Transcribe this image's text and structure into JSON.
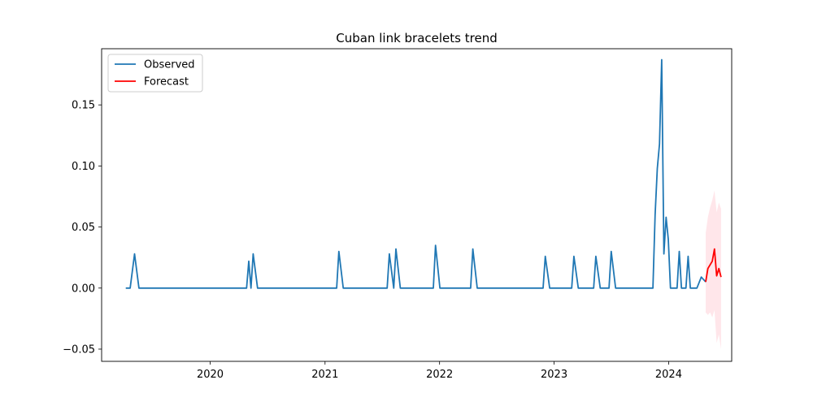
{
  "chart_data": {
    "type": "line",
    "title": "Cuban link bracelets trend",
    "xlabel": "",
    "ylabel": "",
    "x_axis": "date",
    "xlim": [
      "2019-01-20",
      "2024-07-20"
    ],
    "ylim": [
      -0.06,
      0.196
    ],
    "x_ticks": [
      {
        "date": "2020-01-01",
        "label": "2020"
      },
      {
        "date": "2021-01-01",
        "label": "2021"
      },
      {
        "date": "2022-01-01",
        "label": "2022"
      },
      {
        "date": "2023-01-01",
        "label": "2023"
      },
      {
        "date": "2024-01-01",
        "label": "2024"
      }
    ],
    "y_ticks": [
      {
        "value": -0.05,
        "label": "−0.05"
      },
      {
        "value": 0.0,
        "label": "0.00"
      },
      {
        "value": 0.05,
        "label": "0.05"
      },
      {
        "value": 0.1,
        "label": "0.10"
      },
      {
        "value": 0.15,
        "label": "0.15"
      }
    ],
    "grid": false,
    "legend": {
      "position": "top-left"
    },
    "colors": {
      "observed": "#1f77b4",
      "forecast": "#ff0000",
      "band": "#ffc0cb"
    },
    "series": [
      {
        "name": "Observed",
        "color": "#1f77b4",
        "points": [
          [
            "2019-04-07",
            0.0
          ],
          [
            "2019-04-21",
            0.0
          ],
          [
            "2019-05-05",
            0.028
          ],
          [
            "2019-05-19",
            0.0
          ],
          [
            "2020-04-26",
            0.0
          ],
          [
            "2020-05-03",
            0.022
          ],
          [
            "2020-05-10",
            0.0
          ],
          [
            "2020-05-17",
            0.028
          ],
          [
            "2020-05-31",
            0.0
          ],
          [
            "2021-02-07",
            0.0
          ],
          [
            "2021-02-14",
            0.03
          ],
          [
            "2021-02-28",
            0.0
          ],
          [
            "2021-07-18",
            0.0
          ],
          [
            "2021-07-25",
            0.028
          ],
          [
            "2021-08-08",
            0.0
          ],
          [
            "2021-08-15",
            0.032
          ],
          [
            "2021-08-29",
            0.0
          ],
          [
            "2021-12-12",
            0.0
          ],
          [
            "2021-12-19",
            0.035
          ],
          [
            "2022-01-02",
            0.0
          ],
          [
            "2022-04-10",
            0.0
          ],
          [
            "2022-04-17",
            0.032
          ],
          [
            "2022-05-01",
            0.0
          ],
          [
            "2022-11-27",
            0.0
          ],
          [
            "2022-12-04",
            0.026
          ],
          [
            "2022-12-18",
            0.0
          ],
          [
            "2023-02-26",
            0.0
          ],
          [
            "2023-03-05",
            0.026
          ],
          [
            "2023-03-19",
            0.0
          ],
          [
            "2023-05-07",
            0.0
          ],
          [
            "2023-05-14",
            0.026
          ],
          [
            "2023-05-28",
            0.0
          ],
          [
            "2023-06-25",
            0.0
          ],
          [
            "2023-07-02",
            0.03
          ],
          [
            "2023-07-16",
            0.0
          ],
          [
            "2023-11-12",
            0.0
          ],
          [
            "2023-11-19",
            0.06
          ],
          [
            "2023-11-26",
            0.098
          ],
          [
            "2023-12-03",
            0.118
          ],
          [
            "2023-12-10",
            0.187
          ],
          [
            "2023-12-17",
            0.028
          ],
          [
            "2023-12-24",
            0.058
          ],
          [
            "2023-12-31",
            0.04
          ],
          [
            "2024-01-07",
            0.0
          ],
          [
            "2024-01-28",
            0.0
          ],
          [
            "2024-02-04",
            0.03
          ],
          [
            "2024-02-11",
            0.0
          ],
          [
            "2024-02-25",
            0.0
          ],
          [
            "2024-03-03",
            0.026
          ],
          [
            "2024-03-10",
            0.0
          ],
          [
            "2024-03-31",
            0.0
          ],
          [
            "2024-04-14",
            0.009
          ],
          [
            "2024-04-28",
            0.005
          ]
        ]
      },
      {
        "name": "Forecast",
        "color": "#ff0000",
        "points": [
          [
            "2024-04-28",
            0.005
          ],
          [
            "2024-05-05",
            0.016
          ],
          [
            "2024-05-12",
            0.019
          ],
          [
            "2024-05-19",
            0.022
          ],
          [
            "2024-05-26",
            0.032
          ],
          [
            "2024-06-02",
            0.01
          ],
          [
            "2024-06-09",
            0.016
          ],
          [
            "2024-06-16",
            0.009
          ]
        ],
        "band_upper": [
          0.045,
          0.058,
          0.066,
          0.072,
          0.08,
          0.062,
          0.07,
          0.065
        ],
        "band_lower": [
          -0.02,
          -0.022,
          -0.02,
          -0.024,
          -0.018,
          -0.045,
          -0.038,
          -0.05
        ]
      }
    ]
  }
}
